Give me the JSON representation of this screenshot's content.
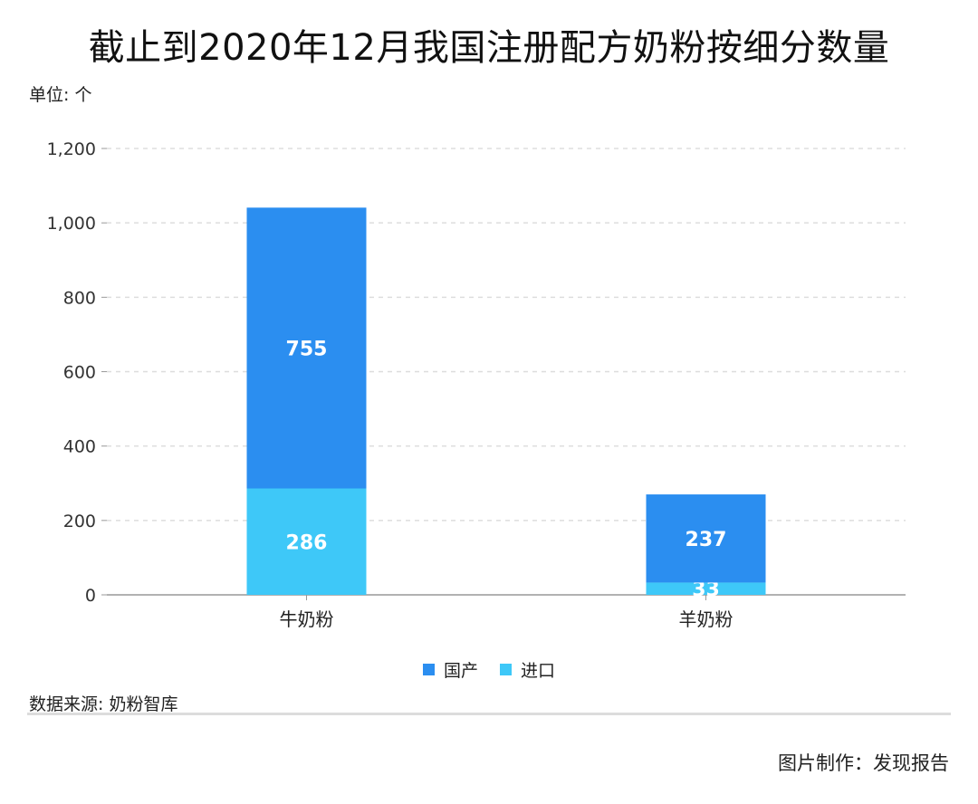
{
  "header": {
    "title": "截止到2020年12月我国注册配方奶粉按细分数量",
    "unit": "单位: 个"
  },
  "footer": {
    "source": "数据来源: 奶粉智库",
    "credit": "图片制作：发现报告"
  },
  "colors": {
    "domestic": "#2b8ef0",
    "imported": "#3ec8f8",
    "grid": "#dddddd",
    "axis": "#999999"
  },
  "chart_data": {
    "type": "bar",
    "stacked": true,
    "categories": [
      "牛奶粉",
      "羊奶粉"
    ],
    "series": [
      {
        "name": "进口",
        "values": [
          286,
          33
        ],
        "color": "#3ec8f8"
      },
      {
        "name": "国产",
        "values": [
          755,
          237
        ],
        "color": "#2b8ef0"
      }
    ],
    "ylim": [
      0,
      1200
    ],
    "yticks": [
      0,
      200,
      400,
      600,
      800,
      1000,
      1200
    ],
    "ytick_labels": [
      "0",
      "200",
      "400",
      "600",
      "800",
      "1,000",
      "1,200"
    ],
    "grid": true,
    "legend": [
      {
        "name": "国产",
        "color": "#2b8ef0"
      },
      {
        "name": "进口",
        "color": "#3ec8f8"
      }
    ],
    "legend_position": "bottom"
  }
}
